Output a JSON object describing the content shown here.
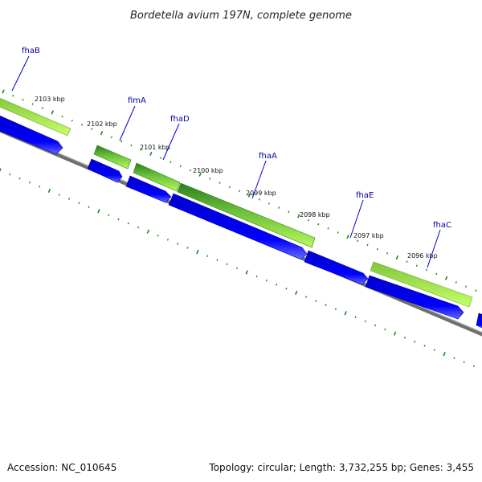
{
  "title": "Bordetella avium 197N, complete genome",
  "footer": {
    "accession": "Accession: NC_010645",
    "summary": "Topology: circular; Length: 3,732,255 bp; Genes: 3,455"
  },
  "colors": {
    "gene_blue": "#0000ee",
    "feature_dark_green": "#2e7d1e",
    "feature_light_green": "#a6f24a",
    "backbone_gray": "#808080",
    "tick_green": "#1a8a1a",
    "label_blue": "#0000aa"
  },
  "ticks": [
    {
      "label": "2103 kbp",
      "kbp": 2103
    },
    {
      "label": "2102 kbp",
      "kbp": 2102
    },
    {
      "label": "2101 kbp",
      "kbp": 2101
    },
    {
      "label": "2100 kbp",
      "kbp": 2100
    },
    {
      "label": "2099 kbp",
      "kbp": 2099
    },
    {
      "label": "2098 kbp",
      "kbp": 2098
    },
    {
      "label": "2097 kbp",
      "kbp": 2097
    },
    {
      "label": "2096 kbp",
      "kbp": 2096
    }
  ],
  "genes": [
    {
      "label": "fhaB",
      "name": "fhaB"
    },
    {
      "label": "fimA",
      "name": "fimA"
    },
    {
      "label": "fhaD",
      "name": "fhaD"
    },
    {
      "label": "fhaA",
      "name": "fhaA"
    },
    {
      "label": "fhaE",
      "name": "fhaE"
    },
    {
      "label": "fhaC",
      "name": "fhaC"
    }
  ]
}
